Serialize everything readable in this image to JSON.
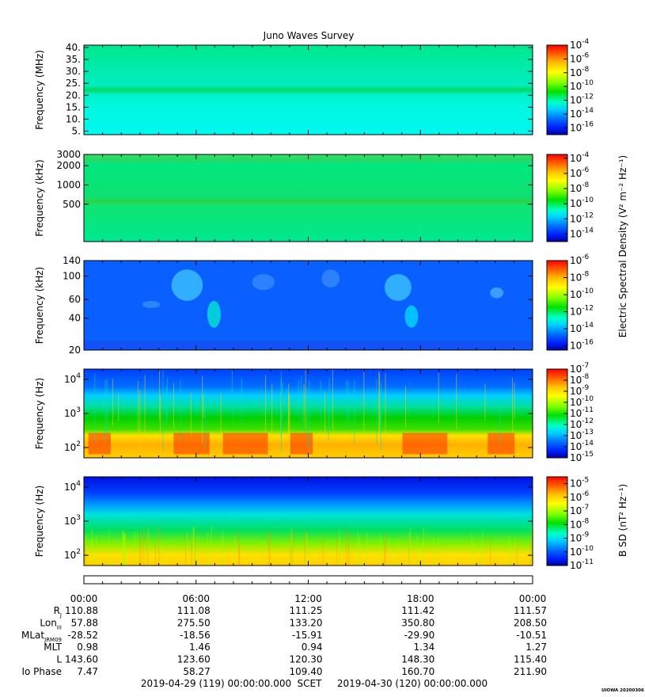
{
  "title": "Juno Waves Survey",
  "footer": {
    "start": "2019-04-29 (119) 00:00:00.000",
    "scet": "SCET",
    "end": "2019-04-30 (120) 00:00:00.000",
    "stamp": "UIOWA 20200306"
  },
  "colorbar_labels": {
    "electric": "Electric Spectral Density (V² m⁻² Hz⁻¹)",
    "magnetic": "B SD (nT² Hz⁻¹)"
  },
  "chart_data": [
    {
      "type": "heatmap",
      "title": "Juno Waves Survey",
      "ylabel": "Frequency (MHz)",
      "yscale": "linear",
      "ylim": [
        3.5,
        41
      ],
      "yticks": [
        {
          "v": 5,
          "t": "5."
        },
        {
          "v": 10,
          "t": "10."
        },
        {
          "v": 15,
          "t": "15."
        },
        {
          "v": 20,
          "t": "20."
        },
        {
          "v": 25,
          "t": "25."
        },
        {
          "v": 30,
          "t": "30."
        },
        {
          "v": 35,
          "t": "35."
        },
        {
          "v": 40,
          "t": "40."
        }
      ],
      "xlim": [
        0,
        24
      ],
      "features": [
        "band near 21 MHz"
      ],
      "colorbar": {
        "scale": "log",
        "exp_min": -17,
        "exp_max": -4,
        "ticks": [
          -4,
          -6,
          -8,
          -10,
          -12,
          -14,
          -16
        ]
      }
    },
    {
      "type": "heatmap",
      "ylabel": "Frequency (kHz)",
      "yscale": "log",
      "ylim": [
        130,
        3000
      ],
      "yticks": [
        {
          "v": 500,
          "t": "500"
        },
        {
          "v": 1000,
          "t": "1000"
        },
        {
          "v": 2000,
          "t": "2000"
        },
        {
          "v": 3000,
          "t": "3000"
        }
      ],
      "xlim": [
        0,
        24
      ],
      "features": [
        "band near 600 kHz",
        "band near 2200 kHz"
      ],
      "colorbar": {
        "scale": "log",
        "exp_min": -15,
        "exp_max": -3.5,
        "ticks": [
          -4,
          -6,
          -8,
          -10,
          -12,
          -14
        ]
      }
    },
    {
      "type": "heatmap",
      "ylabel": "Frequency (kHz)",
      "yscale": "log",
      "ylim": [
        20,
        140
      ],
      "yticks": [
        {
          "v": 20,
          "t": "20"
        },
        {
          "v": 40,
          "t": "40"
        },
        {
          "v": 60,
          "t": "60"
        },
        {
          "v": 100,
          "t": "100"
        },
        {
          "v": 140,
          "t": "140"
        }
      ],
      "xlim": [
        0,
        24
      ],
      "colorbar": {
        "scale": "log",
        "exp_min": -16.5,
        "exp_max": -6,
        "ticks": [
          -6,
          -8,
          -10,
          -12,
          -14,
          -16
        ]
      }
    },
    {
      "type": "heatmap",
      "ylabel": "Frequency (Hz)",
      "yscale": "log",
      "ylim": [
        50,
        20000
      ],
      "yticks": [
        {
          "v": 100,
          "base": "10",
          "exp": "2"
        },
        {
          "v": 1000,
          "base": "10",
          "exp": "3"
        },
        {
          "v": 10000,
          "base": "10",
          "exp": "4"
        }
      ],
      "xlim": [
        0,
        24
      ],
      "colorbar": {
        "scale": "log",
        "exp_min": -15,
        "exp_max": -7,
        "ticks": [
          -7,
          -8,
          -9,
          -10,
          -11,
          -12,
          -13,
          -14,
          -15
        ]
      }
    },
    {
      "type": "heatmap",
      "ylabel": "Frequency (Hz)",
      "yscale": "log",
      "ylim": [
        50,
        20000
      ],
      "yticks": [
        {
          "v": 100,
          "base": "10",
          "exp": "2"
        },
        {
          "v": 1000,
          "base": "10",
          "exp": "3"
        },
        {
          "v": 10000,
          "base": "10",
          "exp": "4"
        }
      ],
      "xlim": [
        0,
        24
      ],
      "colorbar": {
        "scale": "log",
        "exp_min": -11,
        "exp_max": -4.5,
        "ticks": [
          -5,
          -6,
          -7,
          -8,
          -9,
          -10,
          -11
        ]
      }
    }
  ],
  "ephemeris": {
    "time_ticks": [
      "00:00",
      "06:00",
      "12:00",
      "18:00",
      "00:00"
    ],
    "rows": [
      {
        "label": "R",
        "sub": "J",
        "values": [
          "110.88",
          "111.08",
          "111.25",
          "111.42",
          "111.57"
        ]
      },
      {
        "label": "Lon",
        "sub": "III",
        "values": [
          "57.88",
          "275.50",
          "133.20",
          "350.80",
          "208.50"
        ]
      },
      {
        "label": "MLat",
        "sub": "JRM09",
        "values": [
          "-28.52",
          "-18.56",
          "-15.91",
          "-29.90",
          "-10.51"
        ]
      },
      {
        "label": "MLT",
        "sub": "",
        "values": [
          "0.98",
          "1.46",
          "0.94",
          "1.34",
          "1.27"
        ]
      },
      {
        "label": "L",
        "sub": "",
        "values": [
          "143.60",
          "123.60",
          "120.30",
          "148.30",
          "115.40"
        ]
      },
      {
        "label": "Io Phase",
        "sub": "",
        "values": [
          "7.47",
          "58.27",
          "109.40",
          "160.70",
          "211.90"
        ]
      }
    ]
  }
}
